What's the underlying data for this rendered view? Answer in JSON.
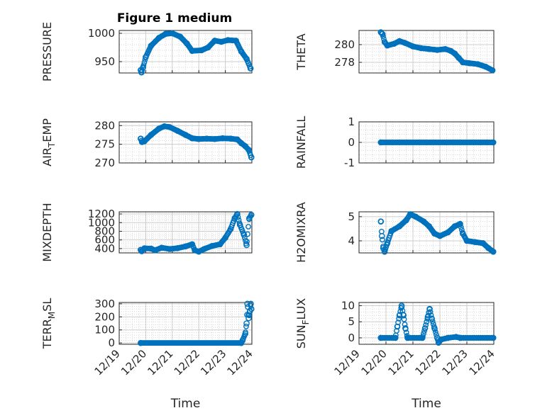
{
  "figure": {
    "title": "Figure 1 medium",
    "marker_color": "#0072BD",
    "grid_color": "#cccccc",
    "axis_color": "#262626"
  },
  "chart_data": [
    {
      "type": "scatter",
      "name": "pressure",
      "ylabel": "PRESSURE",
      "xlabel": "",
      "title": "Figure 1 medium",
      "xlim": [
        0,
        5
      ],
      "ylim": [
        930,
        1005
      ],
      "yticks": [
        {
          "v": 950,
          "label": "950"
        },
        {
          "v": 1000,
          "label": "1000"
        }
      ],
      "xticks": [],
      "anchors": [
        [
          0.81,
          935
        ],
        [
          0.84,
          931
        ],
        [
          0.9,
          940
        ],
        [
          1.0,
          958
        ],
        [
          1.2,
          978
        ],
        [
          1.5,
          992
        ],
        [
          1.75,
          999
        ],
        [
          2.0,
          1000
        ],
        [
          2.3,
          994
        ],
        [
          2.55,
          982
        ],
        [
          2.75,
          969
        ],
        [
          3.1,
          970
        ],
        [
          3.35,
          975
        ],
        [
          3.6,
          987
        ],
        [
          3.85,
          985
        ],
        [
          4.1,
          988
        ],
        [
          4.4,
          987
        ],
        [
          4.6,
          968
        ],
        [
          4.8,
          955
        ],
        [
          4.95,
          938
        ]
      ]
    },
    {
      "type": "scatter",
      "name": "theta",
      "ylabel": "THETA",
      "xlabel": "",
      "xlim": [
        0,
        5
      ],
      "ylim": [
        276.8,
        281.6
      ],
      "yticks": [
        {
          "v": 278,
          "label": "278"
        },
        {
          "v": 280,
          "label": "280"
        }
      ],
      "xticks": [],
      "anchors": [
        [
          0.81,
          281.4
        ],
        [
          0.87,
          281.2
        ],
        [
          0.95,
          280.3
        ],
        [
          1.05,
          279.9
        ],
        [
          1.3,
          280.1
        ],
        [
          1.5,
          280.4
        ],
        [
          1.7,
          280.2
        ],
        [
          2.0,
          279.8
        ],
        [
          2.3,
          279.6
        ],
        [
          2.6,
          279.5
        ],
        [
          2.9,
          279.4
        ],
        [
          3.2,
          279.5
        ],
        [
          3.4,
          279.3
        ],
        [
          3.55,
          279.0
        ],
        [
          3.7,
          278.5
        ],
        [
          3.85,
          278.0
        ],
        [
          4.1,
          277.9
        ],
        [
          4.4,
          277.8
        ],
        [
          4.7,
          277.5
        ],
        [
          4.95,
          277.1
        ]
      ]
    },
    {
      "type": "scatter",
      "name": "airtemp",
      "ylabel": "AIR_TEMP",
      "ylabel_main": "AIR",
      "ylabel_sub": "T",
      "ylabel_rest": "EMP",
      "xlabel": "",
      "xlim": [
        0,
        5
      ],
      "ylim": [
        270,
        281
      ],
      "yticks": [
        {
          "v": 270,
          "label": "270"
        },
        {
          "v": 275,
          "label": "275"
        },
        {
          "v": 280,
          "label": "280"
        }
      ],
      "xticks": [],
      "anchors": [
        [
          0.81,
          276.5
        ],
        [
          0.86,
          275.6
        ],
        [
          0.95,
          275.8
        ],
        [
          1.2,
          277.5
        ],
        [
          1.5,
          279.2
        ],
        [
          1.7,
          279.8
        ],
        [
          1.9,
          279.6
        ],
        [
          2.2,
          278.6
        ],
        [
          2.5,
          277.5
        ],
        [
          2.75,
          276.6
        ],
        [
          3.0,
          276.4
        ],
        [
          3.3,
          276.5
        ],
        [
          3.6,
          276.4
        ],
        [
          3.9,
          276.6
        ],
        [
          4.2,
          276.5
        ],
        [
          4.45,
          276.3
        ],
        [
          4.6,
          275.3
        ],
        [
          4.75,
          274.5
        ],
        [
          4.88,
          273.5
        ],
        [
          4.98,
          271.5
        ]
      ]
    },
    {
      "type": "scatter",
      "name": "rainfall",
      "ylabel": "RAINFALL",
      "xlabel": "",
      "xlim": [
        0,
        5
      ],
      "ylim": [
        -1,
        1
      ],
      "yticks": [
        {
          "v": -1,
          "label": "-1"
        },
        {
          "v": 0,
          "label": "0"
        },
        {
          "v": 1,
          "label": "1"
        }
      ],
      "xticks": [],
      "anchors": [
        [
          0.81,
          0
        ],
        [
          4.98,
          0
        ]
      ]
    },
    {
      "type": "scatter",
      "name": "mixdepth",
      "ylabel": "MIXDEPTH",
      "xlabel": "",
      "xlim": [
        0,
        5
      ],
      "ylim": [
        300,
        1250
      ],
      "yticks": [
        {
          "v": 400,
          "label": "400"
        },
        {
          "v": 600,
          "label": "600"
        },
        {
          "v": 800,
          "label": "800"
        },
        {
          "v": 1000,
          "label": "1000"
        },
        {
          "v": 1200,
          "label": "1200"
        }
      ],
      "xticks": [],
      "anchors": [
        [
          0.81,
          370
        ],
        [
          0.85,
          340
        ],
        [
          0.95,
          405
        ],
        [
          1.2,
          400
        ],
        [
          1.35,
          360
        ],
        [
          1.6,
          420
        ],
        [
          1.9,
          390
        ],
        [
          2.2,
          410
        ],
        [
          2.5,
          450
        ],
        [
          2.75,
          500
        ],
        [
          2.85,
          360
        ],
        [
          3.0,
          330
        ],
        [
          3.2,
          390
        ],
        [
          3.5,
          460
        ],
        [
          3.8,
          500
        ],
        [
          4.0,
          650
        ],
        [
          4.2,
          850
        ],
        [
          4.35,
          1100
        ],
        [
          4.45,
          1200
        ],
        [
          4.55,
          950
        ],
        [
          4.7,
          720
        ],
        [
          4.8,
          480
        ],
        [
          4.9,
          1100
        ],
        [
          4.98,
          1180
        ]
      ]
    },
    {
      "type": "scatter",
      "name": "h2omixra",
      "ylabel": "H2OMIXRA",
      "xlabel": "",
      "xlim": [
        0,
        5
      ],
      "ylim": [
        3.5,
        5.2
      ],
      "yticks": [
        {
          "v": 4,
          "label": "4"
        },
        {
          "v": 5,
          "label": "5"
        }
      ],
      "xticks": [],
      "anchors": [
        [
          0.81,
          4.8
        ],
        [
          0.85,
          4.2
        ],
        [
          0.9,
          3.7
        ],
        [
          0.95,
          3.55
        ],
        [
          1.05,
          3.9
        ],
        [
          1.2,
          4.4
        ],
        [
          1.5,
          4.6
        ],
        [
          1.75,
          4.85
        ],
        [
          1.9,
          5.1
        ],
        [
          2.1,
          5.0
        ],
        [
          2.4,
          4.8
        ],
        [
          2.6,
          4.6
        ],
        [
          2.8,
          4.3
        ],
        [
          3.0,
          4.2
        ],
        [
          3.3,
          4.35
        ],
        [
          3.55,
          4.6
        ],
        [
          3.75,
          4.7
        ],
        [
          3.85,
          4.3
        ],
        [
          4.0,
          4.0
        ],
        [
          4.3,
          3.95
        ],
        [
          4.6,
          3.9
        ],
        [
          4.8,
          3.7
        ],
        [
          4.98,
          3.55
        ]
      ]
    },
    {
      "type": "scatter",
      "name": "terrmsl",
      "ylabel": "TERR_MSL",
      "ylabel_main": "TERR",
      "ylabel_sub": "M",
      "ylabel_rest": "SL",
      "xlabel": "Time",
      "xlim": [
        0,
        5
      ],
      "ylim": [
        -10,
        310
      ],
      "yticks": [
        {
          "v": 0,
          "label": "0"
        },
        {
          "v": 100,
          "label": "100"
        },
        {
          "v": 200,
          "label": "200"
        },
        {
          "v": 300,
          "label": "300"
        }
      ],
      "xticks": [
        {
          "v": 0,
          "label": "12/19"
        },
        {
          "v": 1,
          "label": "12/20"
        },
        {
          "v": 2,
          "label": "12/21"
        },
        {
          "v": 3,
          "label": "12/22"
        },
        {
          "v": 4,
          "label": "12/23"
        },
        {
          "v": 5,
          "label": "12/24"
        }
      ],
      "anchors": [
        [
          0.81,
          0
        ],
        [
          4.6,
          0
        ],
        [
          4.65,
          20
        ],
        [
          4.75,
          70
        ],
        [
          4.8,
          150
        ],
        [
          4.83,
          300
        ],
        [
          4.88,
          190
        ],
        [
          4.92,
          240
        ],
        [
          4.96,
          300
        ],
        [
          4.98,
          260
        ]
      ]
    },
    {
      "type": "scatter",
      "name": "sunflux",
      "ylabel": "SUN_FLUX",
      "ylabel_main": "SUN",
      "ylabel_sub": "F",
      "ylabel_rest": "LUX",
      "xlabel": "Time",
      "xlim": [
        0,
        5
      ],
      "ylim": [
        -2,
        11
      ],
      "yticks": [
        {
          "v": 0,
          "label": "0"
        },
        {
          "v": 5,
          "label": "5"
        },
        {
          "v": 10,
          "label": "10"
        }
      ],
      "xticks": [
        {
          "v": 0,
          "label": "12/19"
        },
        {
          "v": 1,
          "label": "12/20"
        },
        {
          "v": 2,
          "label": "12/21"
        },
        {
          "v": 3,
          "label": "12/22"
        },
        {
          "v": 4,
          "label": "12/23"
        },
        {
          "v": 5,
          "label": "12/24"
        }
      ],
      "anchors": [
        [
          0.81,
          0
        ],
        [
          1.35,
          0
        ],
        [
          1.42,
          3.5
        ],
        [
          1.5,
          7
        ],
        [
          1.58,
          10
        ],
        [
          1.65,
          7
        ],
        [
          1.72,
          3
        ],
        [
          1.8,
          0
        ],
        [
          2.35,
          0
        ],
        [
          2.45,
          3
        ],
        [
          2.55,
          6.5
        ],
        [
          2.62,
          9
        ],
        [
          2.7,
          6
        ],
        [
          2.8,
          3
        ],
        [
          2.9,
          0
        ],
        [
          2.95,
          -1.5
        ],
        [
          3.05,
          -0.5
        ],
        [
          3.3,
          0
        ],
        [
          3.6,
          0.3
        ],
        [
          3.75,
          0
        ],
        [
          4.98,
          0
        ]
      ]
    }
  ]
}
